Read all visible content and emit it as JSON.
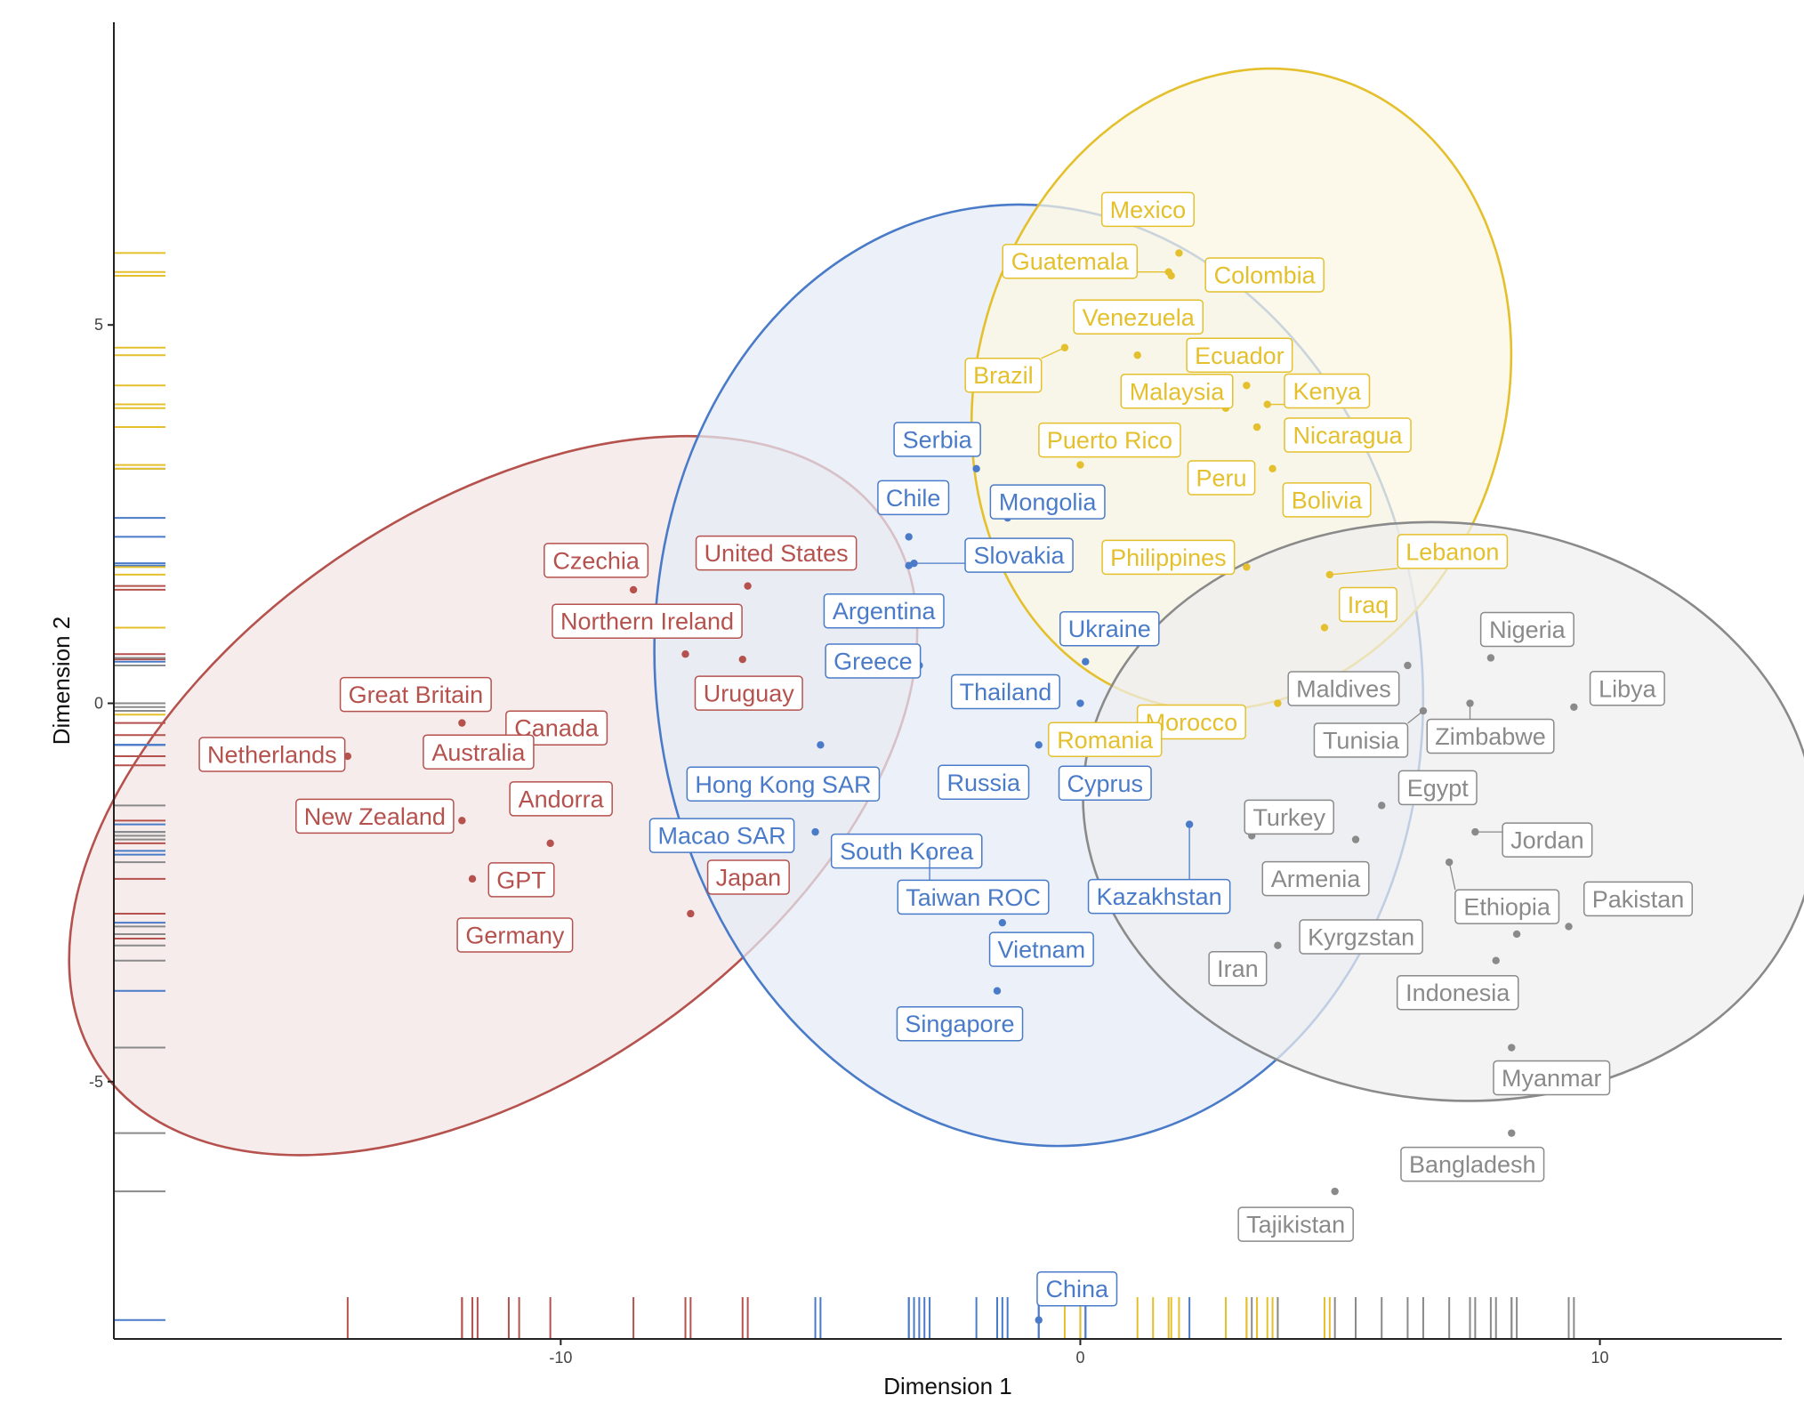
{
  "chart_data": {
    "type": "scatter",
    "title": "",
    "xlabel": "Dimension 1",
    "ylabel": "Dimension 2",
    "xlim": [
      -18.6,
      13.5
    ],
    "ylim": [
      -8.4,
      9.0
    ],
    "x_ticks": [
      -10,
      0,
      10
    ],
    "y_ticks": [
      5,
      0,
      -5
    ],
    "x_tick_labels": [
      "-10",
      "0",
      "10"
    ],
    "y_tick_labels": [
      "5",
      "0",
      "-5"
    ],
    "grid": false,
    "rug_marks": true,
    "legend": "none",
    "series": [
      {
        "color": "#b5524e",
        "fill": "#f4e4e4",
        "ellipse": {
          "cx": -11.3,
          "cy": -1.22,
          "rx": 9.2,
          "ry": 3.75,
          "angle_deg": 35
        },
        "points": [
          {
            "label": "Czechia",
            "x": -8.6,
            "y": 1.5
          },
          {
            "label": "United States",
            "x": -6.4,
            "y": 1.55
          },
          {
            "label": "Northern Ireland",
            "x": -7.6,
            "y": 0.65
          },
          {
            "label": "Uruguay",
            "x": -6.5,
            "y": 0.58
          },
          {
            "label": "Great Britain",
            "x": -11.9,
            "y": -0.26
          },
          {
            "label": "Canada",
            "x": -10.8,
            "y": -0.42
          },
          {
            "label": "Netherlands",
            "x": -14.1,
            "y": -0.7
          },
          {
            "label": "Australia",
            "x": -11.0,
            "y": -0.82
          },
          {
            "label": "New Zealand",
            "x": -11.9,
            "y": -1.55
          },
          {
            "label": "Andorra",
            "x": -10.2,
            "y": -1.85
          },
          {
            "label": "GPT",
            "x": -11.7,
            "y": -2.32
          },
          {
            "label": "Japan",
            "x": -7.5,
            "y": -2.78
          },
          {
            "label": "Germany",
            "x": -11.6,
            "y": -3.11
          }
        ]
      },
      {
        "color": "#4a7bc8",
        "fill": "#e4ecf7",
        "ellipse": {
          "cx": -0.8,
          "cy": 0.37,
          "rx": 9.08,
          "ry": 5.06,
          "angle_deg": 97
        },
        "points": [
          {
            "label": "Serbia",
            "x": -2.0,
            "y": 3.1
          },
          {
            "label": "Mongolia",
            "x": -1.4,
            "y": 2.45
          },
          {
            "label": "Chile",
            "x": -3.3,
            "y": 2.2
          },
          {
            "label": "Slovakia",
            "x": -3.2,
            "y": 1.85
          },
          {
            "label": "Argentina",
            "x": -3.3,
            "y": 1.82
          },
          {
            "label": "Ukraine",
            "x": 0.1,
            "y": 0.55
          },
          {
            "label": "Greece",
            "x": -3.1,
            "y": 0.5
          },
          {
            "label": "Thailand",
            "x": 0.0,
            "y": 0.0
          },
          {
            "label": "Hong Kong SAR",
            "x": -5.0,
            "y": -0.55
          },
          {
            "label": "Russia",
            "x": -0.8,
            "y": -0.55
          },
          {
            "label": "Cyprus",
            "x": 0.1,
            "y": -0.55
          },
          {
            "label": "Macao SAR",
            "x": -5.1,
            "y": -1.7
          },
          {
            "label": "South Korea",
            "x": -3.0,
            "y": -2.0
          },
          {
            "label": "Taiwan ROC",
            "x": -2.9,
            "y": -1.95
          },
          {
            "label": "Kazakhstan",
            "x": 2.1,
            "y": -1.6
          },
          {
            "label": "Vietnam",
            "x": -1.5,
            "y": -2.9
          },
          {
            "label": "Singapore",
            "x": -1.6,
            "y": -3.8
          },
          {
            "label": "China",
            "x": -0.8,
            "y": -8.15
          }
        ]
      },
      {
        "color": "#e4c02d",
        "fill": "#fcf7e2",
        "ellipse": {
          "cx": 3.1,
          "cy": 4.15,
          "rx": 6.25,
          "ry": 3.5,
          "angle_deg": 74
        },
        "points": [
          {
            "label": "Mexico",
            "x": 1.9,
            "y": 5.95
          },
          {
            "label": "Guatemala",
            "x": 1.7,
            "y": 5.7
          },
          {
            "label": "Colombia",
            "x": 1.75,
            "y": 5.65
          },
          {
            "label": "Venezuela",
            "x": 1.1,
            "y": 4.6
          },
          {
            "label": "Ecuador",
            "x": 3.2,
            "y": 4.2
          },
          {
            "label": "Brazil",
            "x": -0.3,
            "y": 4.7
          },
          {
            "label": "Malaysia",
            "x": 2.8,
            "y": 3.9
          },
          {
            "label": "Kenya",
            "x": 3.6,
            "y": 3.95
          },
          {
            "label": "Puerto Rico",
            "x": 0.0,
            "y": 3.15
          },
          {
            "label": "Nicaragua",
            "x": 3.4,
            "y": 3.65
          },
          {
            "label": "Peru",
            "x": 3.4,
            "y": 3.65
          },
          {
            "label": "Bolivia",
            "x": 3.7,
            "y": 3.1
          },
          {
            "label": "Philippines",
            "x": 3.2,
            "y": 1.8
          },
          {
            "label": "Lebanon",
            "x": 4.8,
            "y": 1.7
          },
          {
            "label": "Iraq",
            "x": 4.7,
            "y": 1.0
          },
          {
            "label": "Morocco",
            "x": 3.8,
            "y": 0.0
          },
          {
            "label": "Romania",
            "x": 1.4,
            "y": -0.15
          }
        ]
      },
      {
        "color": "#8a8a8a",
        "fill": "#eeeeee",
        "ellipse": {
          "cx": 7.1,
          "cy": -1.43,
          "rx": 5.55,
          "ry": 4.85,
          "angle_deg": 84
        },
        "points": [
          {
            "label": "Nigeria",
            "x": 7.9,
            "y": 0.6
          },
          {
            "label": "Maldives",
            "x": 6.3,
            "y": 0.5
          },
          {
            "label": "Libya",
            "x": 9.5,
            "y": -0.05
          },
          {
            "label": "Tunisia",
            "x": 6.6,
            "y": -0.1
          },
          {
            "label": "Zimbabwe",
            "x": 7.5,
            "y": -0.0
          },
          {
            "label": "Turkey",
            "x": 3.3,
            "y": -1.75
          },
          {
            "label": "Egypt",
            "x": 5.8,
            "y": -1.35
          },
          {
            "label": "Jordan",
            "x": 7.6,
            "y": -1.7
          },
          {
            "label": "Armenia",
            "x": 5.3,
            "y": -1.8
          },
          {
            "label": "Ethiopia",
            "x": 7.1,
            "y": -2.1
          },
          {
            "label": "Pakistan",
            "x": 9.4,
            "y": -2.95
          },
          {
            "label": "Kyrgzstan",
            "x": 8.4,
            "y": -3.05
          },
          {
            "label": "Iran",
            "x": 3.8,
            "y": -3.2
          },
          {
            "label": "Indonesia",
            "x": 8.0,
            "y": -3.4
          },
          {
            "label": "Myanmar",
            "x": 8.3,
            "y": -4.55
          },
          {
            "label": "Bangladesh",
            "x": 8.3,
            "y": -5.68
          },
          {
            "label": "Tajikistan",
            "x": 4.9,
            "y": -6.45
          }
        ]
      }
    ]
  }
}
